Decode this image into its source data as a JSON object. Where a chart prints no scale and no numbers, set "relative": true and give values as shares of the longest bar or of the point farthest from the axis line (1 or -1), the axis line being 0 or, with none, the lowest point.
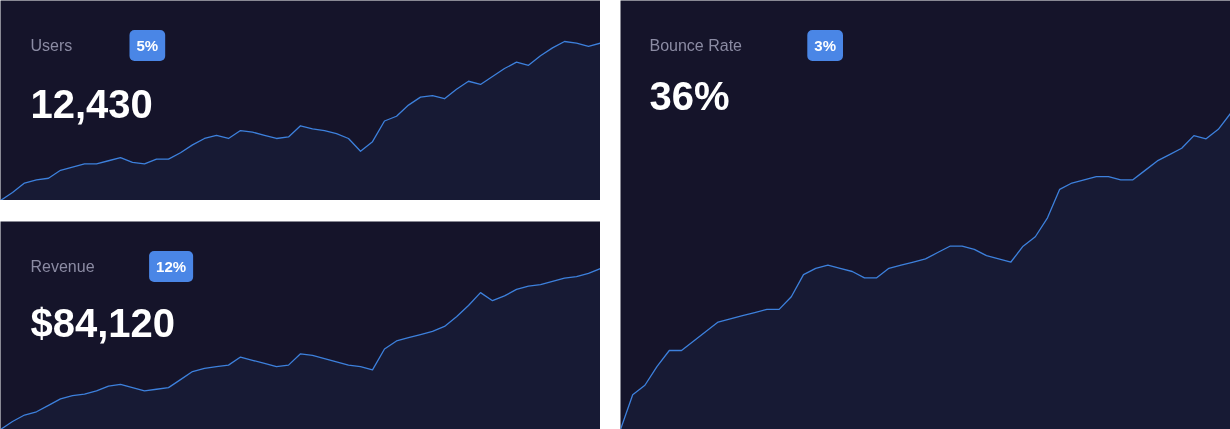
{
  "chart_data": [
    {
      "type": "area",
      "title": "Users",
      "subtitle": "12,430",
      "annotations": [
        "5%"
      ],
      "relative": true,
      "tick_labels": false,
      "color": "#3d80dc",
      "categories": [
        null,
        null,
        null,
        null,
        null,
        null,
        null,
        null,
        null,
        null,
        null,
        null,
        null,
        null,
        null,
        null,
        null,
        null,
        null,
        null,
        null,
        null,
        null,
        null,
        null,
        null,
        null,
        null,
        null,
        null,
        null,
        null,
        null,
        null,
        null,
        null,
        null,
        null,
        null,
        null,
        null,
        null,
        null,
        null,
        null,
        null,
        null,
        null,
        null,
        null,
        null
      ],
      "values": [
        0,
        0.05,
        0.11,
        0.13,
        0.14,
        0.19,
        0.21,
        0.23,
        0.23,
        0.25,
        0.27,
        0.24,
        0.23,
        0.26,
        0.26,
        0.3,
        0.35,
        0.39,
        0.41,
        0.39,
        0.44,
        0.43,
        0.41,
        0.39,
        0.4,
        0.47,
        0.45,
        0.44,
        0.42,
        0.39,
        0.31,
        0.37,
        0.5,
        0.53,
        0.6,
        0.65,
        0.66,
        0.64,
        0.7,
        0.75,
        0.73,
        0.78,
        0.83,
        0.87,
        0.85,
        0.91,
        0.96,
        1,
        0.99,
        0.97,
        0.99
      ]
    },
    {
      "type": "area",
      "title": "Revenue",
      "subtitle": "$84,120",
      "annotations": [
        "12%"
      ],
      "relative": true,
      "tick_labels": false,
      "color": "#3d80dc",
      "categories": [
        null,
        null,
        null,
        null,
        null,
        null,
        null,
        null,
        null,
        null,
        null,
        null,
        null,
        null,
        null,
        null,
        null,
        null,
        null,
        null,
        null,
        null,
        null,
        null,
        null,
        null,
        null,
        null,
        null,
        null,
        null,
        null,
        null,
        null,
        null,
        null,
        null,
        null,
        null,
        null,
        null,
        null,
        null,
        null,
        null,
        null,
        null,
        null,
        null,
        null,
        null
      ],
      "values": [
        0,
        0.05,
        0.09,
        0.11,
        0.15,
        0.19,
        0.21,
        0.22,
        0.24,
        0.27,
        0.28,
        0.26,
        0.24,
        0.25,
        0.26,
        0.31,
        0.36,
        0.38,
        0.39,
        0.4,
        0.45,
        0.43,
        0.41,
        0.39,
        0.4,
        0.47,
        0.46,
        0.44,
        0.42,
        0.4,
        0.39,
        0.37,
        0.5,
        0.55,
        0.57,
        0.59,
        0.61,
        0.64,
        0.7,
        0.77,
        0.85,
        0.8,
        0.83,
        0.87,
        0.89,
        0.9,
        0.92,
        0.94,
        0.95,
        0.97,
        1
      ]
    },
    {
      "type": "area",
      "title": "Bounce Rate",
      "subtitle": "36%",
      "annotations": [
        "3%"
      ],
      "relative": true,
      "tick_labels": false,
      "color": "#3d80dc",
      "categories": [
        null,
        null,
        null,
        null,
        null,
        null,
        null,
        null,
        null,
        null,
        null,
        null,
        null,
        null,
        null,
        null,
        null,
        null,
        null,
        null,
        null,
        null,
        null,
        null,
        null,
        null,
        null,
        null,
        null,
        null,
        null,
        null,
        null,
        null,
        null,
        null,
        null,
        null,
        null,
        null,
        null,
        null,
        null,
        null,
        null,
        null,
        null,
        null,
        null,
        null,
        null
      ],
      "values": [
        0,
        0.11,
        0.14,
        0.2,
        0.25,
        0.25,
        0.28,
        0.31,
        0.34,
        0.35,
        0.36,
        0.37,
        0.38,
        0.38,
        0.42,
        0.49,
        0.51,
        0.52,
        0.51,
        0.5,
        0.48,
        0.48,
        0.51,
        0.52,
        0.53,
        0.54,
        0.56,
        0.58,
        0.58,
        0.57,
        0.55,
        0.54,
        0.53,
        0.58,
        0.61,
        0.67,
        0.76,
        0.78,
        0.79,
        0.8,
        0.8,
        0.79,
        0.79,
        0.82,
        0.85,
        0.87,
        0.89,
        0.93,
        0.92,
        0.95,
        1
      ]
    }
  ]
}
